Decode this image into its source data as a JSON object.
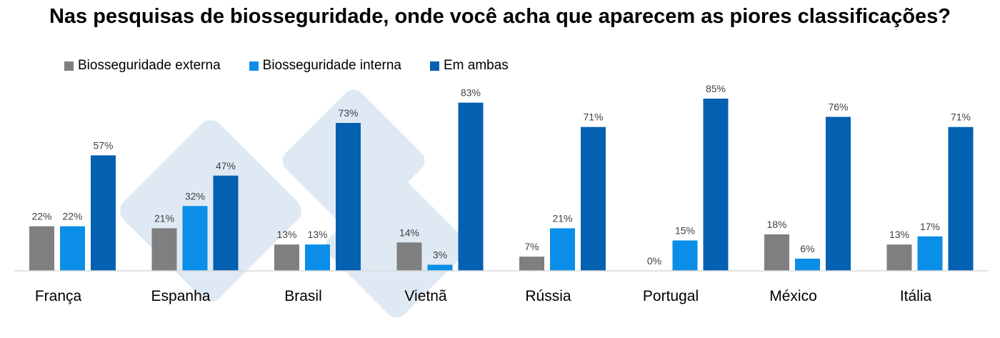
{
  "chart_data": {
    "type": "bar",
    "title": "Nas pesquisas de biosseguridade, onde você acha que aparecem as piores classificações?",
    "categories": [
      "França",
      "Espanha",
      "Brasil",
      "Vietnã",
      "Rússia",
      "Portugal",
      "México",
      "Itália"
    ],
    "series": [
      {
        "name": "Biosseguridade externa",
        "color": "#7f7f7f",
        "values": [
          22,
          21,
          13,
          14,
          7,
          0,
          18,
          13
        ]
      },
      {
        "name": "Biosseguridade interna",
        "color": "#0a8ee8",
        "values": [
          22,
          32,
          13,
          3,
          21,
          15,
          6,
          17
        ]
      },
      {
        "name": "Em ambas",
        "color": "#0460b0",
        "values": [
          57,
          47,
          73,
          83,
          71,
          85,
          76,
          71
        ]
      }
    ],
    "value_suffix": "%",
    "ylim": [
      0,
      90
    ],
    "grid": false,
    "legend": "top-left"
  }
}
